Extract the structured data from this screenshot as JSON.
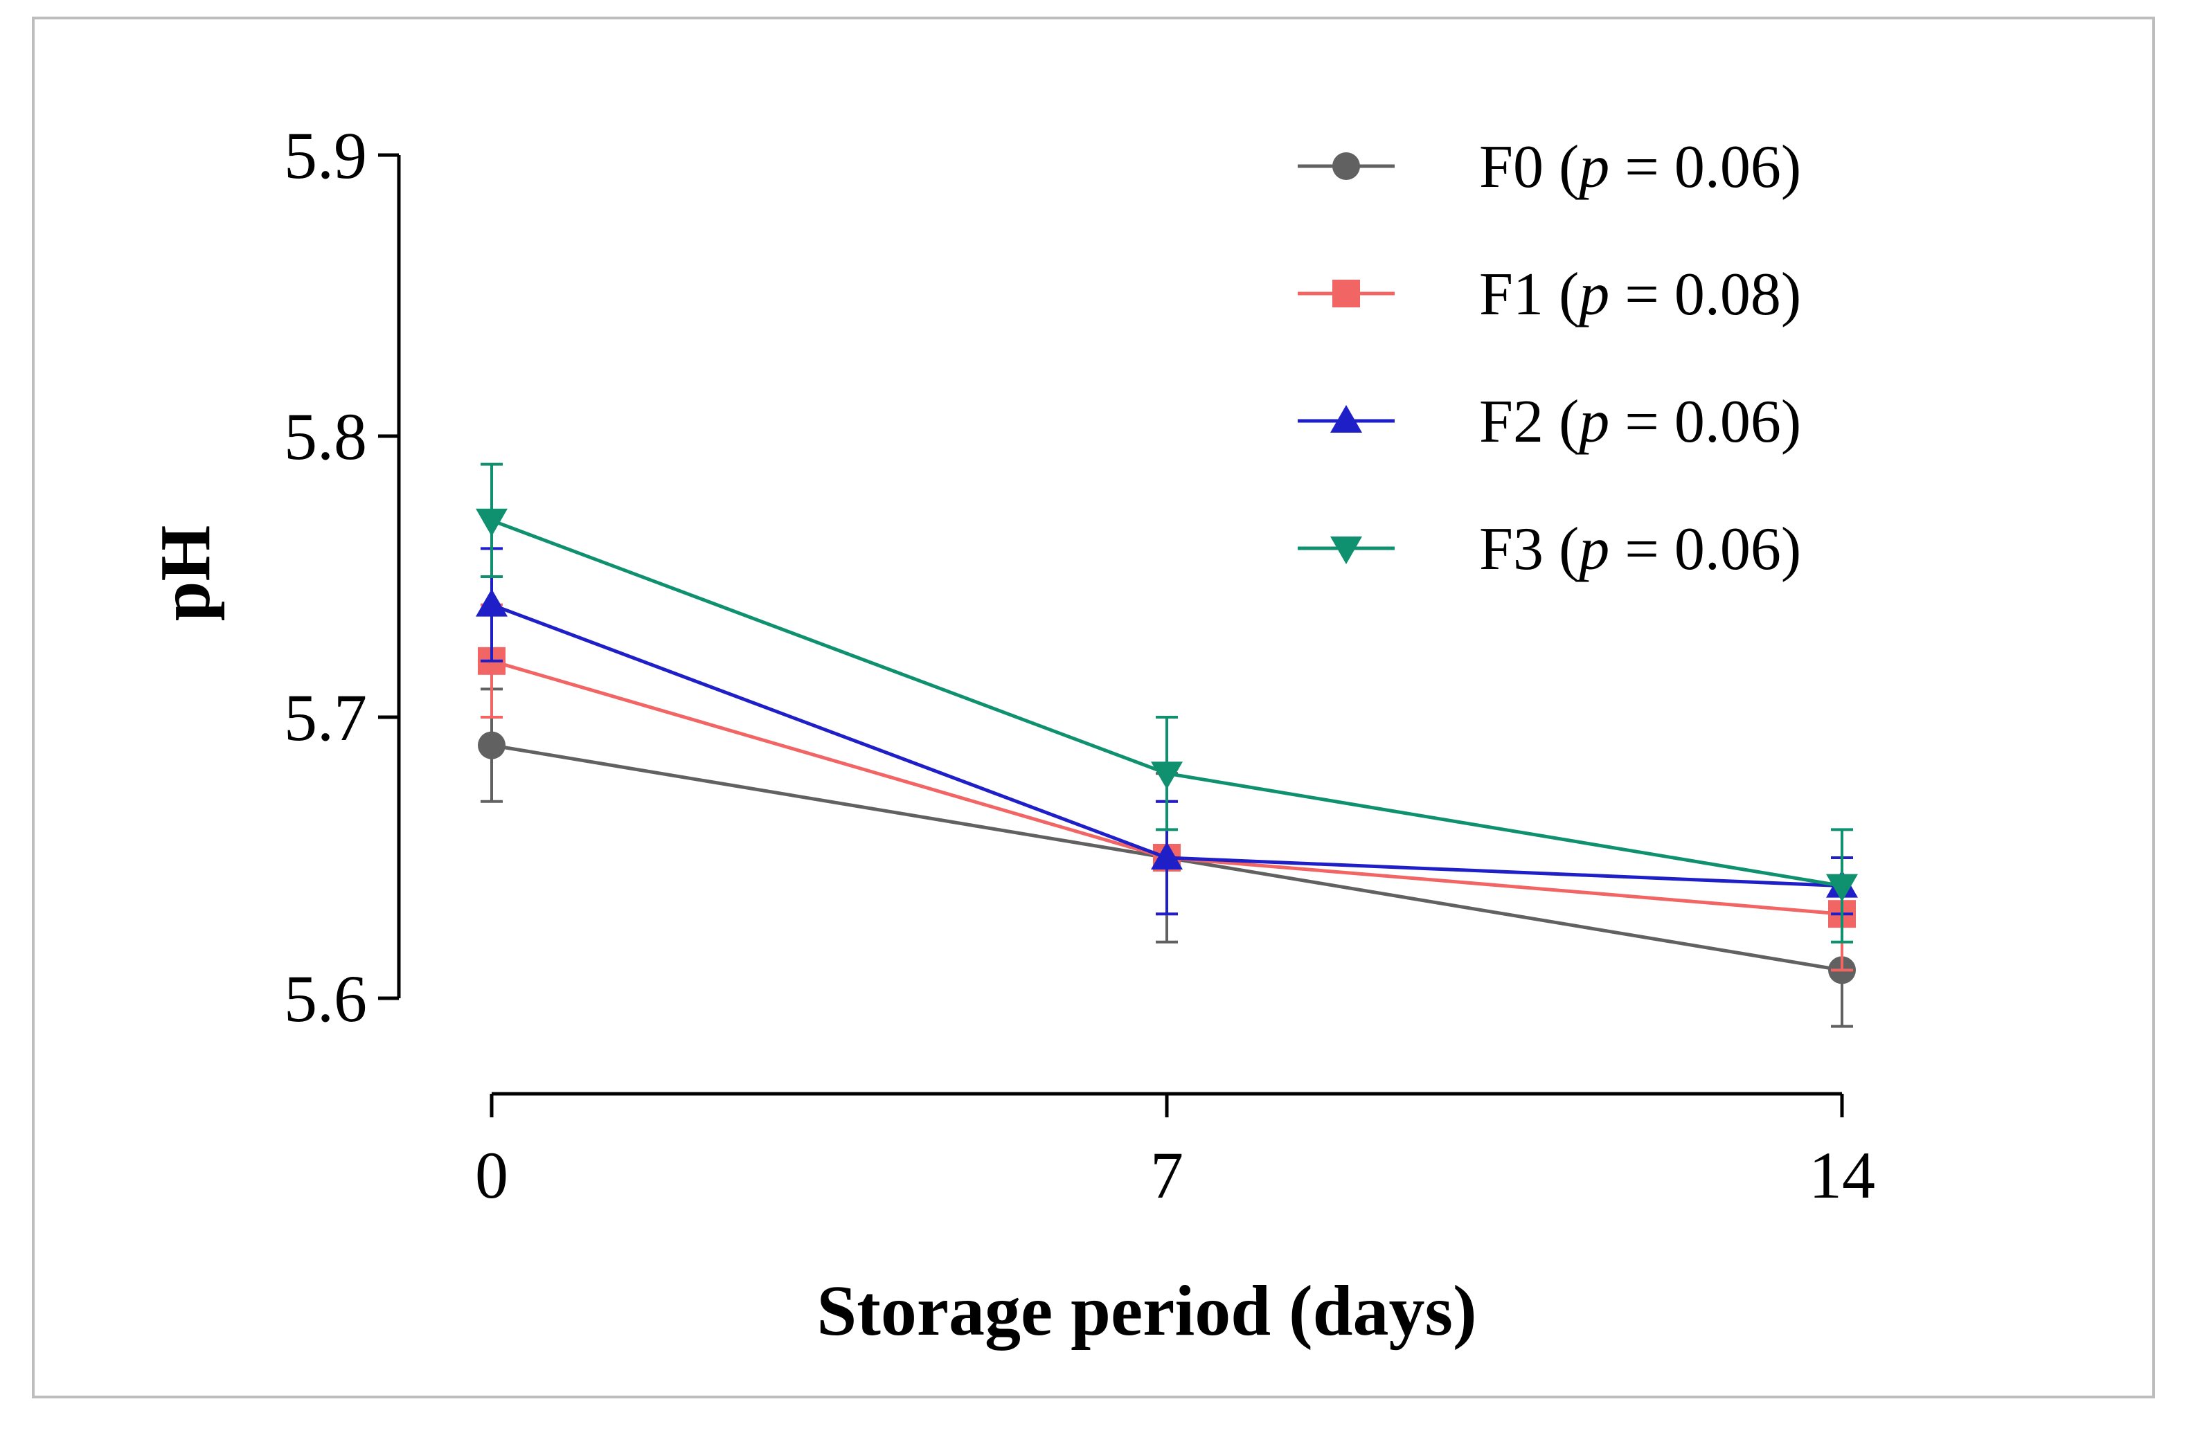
{
  "chart_data": {
    "type": "line",
    "title": "",
    "xlabel": "Storage period (days)",
    "ylabel": "pH",
    "x": [
      0,
      7,
      14
    ],
    "x_tick_labels": [
      "0",
      "7",
      "14"
    ],
    "ylim": [
      5.6,
      5.9
    ],
    "y_ticks": [
      5.6,
      5.7,
      5.8,
      5.9
    ],
    "y_tick_labels": [
      "5.6",
      "5.7",
      "5.8",
      "5.9"
    ],
    "legend_position": "top-right",
    "series": [
      {
        "name": "F0",
        "p_label": "p",
        "p_value": "0.06",
        "color": "#616161",
        "marker": "circle",
        "values": [
          5.69,
          5.65,
          5.61
        ],
        "errors": [
          0.02,
          0.03,
          0.02
        ]
      },
      {
        "name": "F1",
        "p_label": "p",
        "p_value": "0.08",
        "color": "#f26565",
        "marker": "square",
        "values": [
          5.72,
          5.65,
          5.63
        ],
        "errors": [
          0.02,
          0.02,
          0.02
        ]
      },
      {
        "name": "F2",
        "p_label": "p",
        "p_value": "0.06",
        "color": "#1f1fc8",
        "marker": "triangle-up",
        "values": [
          5.74,
          5.65,
          5.64
        ],
        "errors": [
          0.02,
          0.02,
          0.01
        ]
      },
      {
        "name": "F3",
        "p_label": "p",
        "p_value": "0.06",
        "color": "#0f9170",
        "marker": "triangle-down",
        "values": [
          5.77,
          5.68,
          5.64
        ],
        "errors": [
          0.02,
          0.02,
          0.02
        ]
      }
    ]
  }
}
